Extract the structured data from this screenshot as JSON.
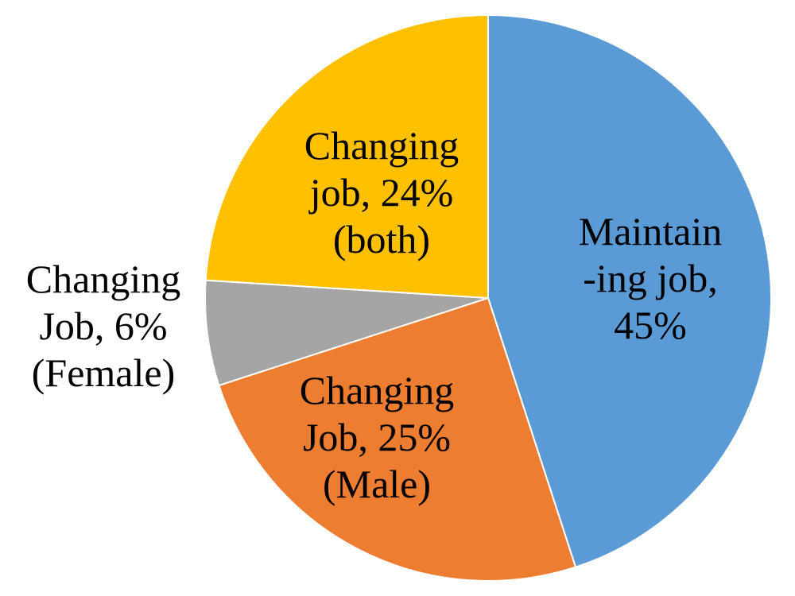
{
  "chart_data": {
    "type": "pie",
    "title": "",
    "start": "12 o'clock",
    "direction": "clockwise",
    "slices": [
      {
        "name": "maintaining-job",
        "value": 45,
        "color": "#5B9BD5",
        "label_lines": [
          "Maintain",
          "-ing job,",
          "45%"
        ]
      },
      {
        "name": "changing-job-male",
        "value": 25,
        "color": "#ED7D31",
        "label_lines": [
          "Changing",
          "Job, 25%",
          "(Male)"
        ]
      },
      {
        "name": "changing-job-female",
        "value": 6,
        "color": "#A5A5A5",
        "label_lines": [
          "Changing",
          "Job, 6%",
          "(Female)"
        ]
      },
      {
        "name": "changing-job-both",
        "value": 24,
        "color": "#FFC000",
        "label_lines": [
          "Changing",
          "job, 24%",
          "(both)"
        ]
      }
    ]
  }
}
